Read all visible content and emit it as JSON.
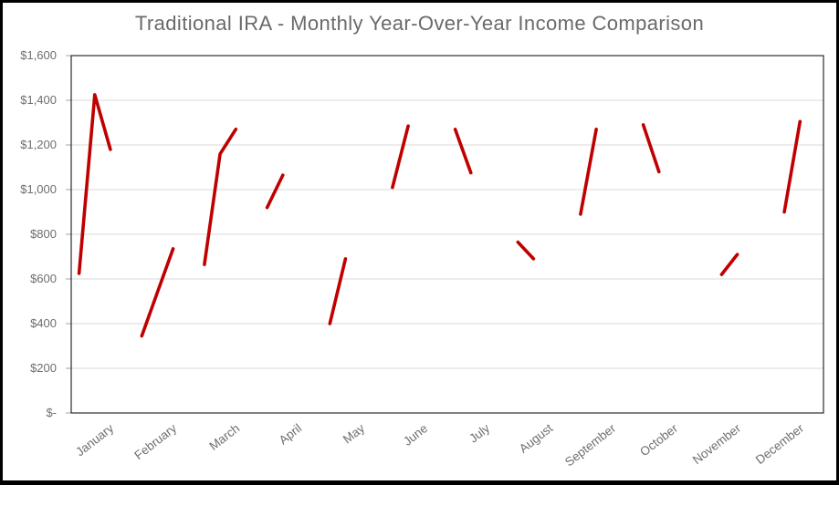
{
  "title": "Traditional IRA - Monthly Year-Over-Year Income Comparison",
  "colors": {
    "series": "#C00000",
    "gridline": "#D9D9D9",
    "axis": "#000000",
    "tick": "#A6A6A6",
    "text": "#6A6A6A",
    "background": "#FFFFFF",
    "frame_border": "#000000"
  },
  "chart_data": {
    "type": "line",
    "title": "Traditional IRA - Monthly Year-Over-Year Income Comparison",
    "xlabel": "",
    "ylabel": "",
    "ylim": [
      0,
      1600
    ],
    "y_tick_step": 200,
    "y_tick_labels": [
      "$-",
      "$200",
      "$400",
      "$600",
      "$800",
      "$1,000",
      "$1,200",
      "$1,400",
      "$1,600"
    ],
    "grid": true,
    "legend": false,
    "series_color": "#C00000",
    "categories": [
      "January",
      "February",
      "March",
      "April",
      "May",
      "June",
      "July",
      "August",
      "September",
      "October",
      "November",
      "December"
    ],
    "months": [
      {
        "label": "January",
        "values": [
          625,
          1425,
          1180
        ],
        "slots": [
          0,
          1,
          2
        ]
      },
      {
        "label": "February",
        "values": [
          345,
          540,
          735
        ],
        "slots": [
          0,
          1,
          2
        ]
      },
      {
        "label": "March",
        "values": [
          665,
          1160,
          1270
        ],
        "slots": [
          0,
          1,
          2
        ]
      },
      {
        "label": "April",
        "values": [
          920,
          1065
        ],
        "slots": [
          0,
          1
        ]
      },
      {
        "label": "May",
        "values": [
          400,
          690
        ],
        "slots": [
          0,
          1
        ]
      },
      {
        "label": "June",
        "values": [
          1010,
          1285
        ],
        "slots": [
          0,
          1
        ]
      },
      {
        "label": "July",
        "values": [
          1270,
          1075
        ],
        "slots": [
          0,
          1
        ]
      },
      {
        "label": "August",
        "values": [
          765,
          690
        ],
        "slots": [
          0,
          1
        ]
      },
      {
        "label": "September",
        "values": [
          890,
          1270
        ],
        "slots": [
          0,
          1
        ]
      },
      {
        "label": "October",
        "values": [
          1290,
          1080
        ],
        "slots": [
          0,
          1
        ]
      },
      {
        "label": "November",
        "values": [
          620,
          710
        ],
        "slots": [
          1,
          2
        ]
      },
      {
        "label": "December",
        "values": [
          900,
          1305
        ],
        "slots": [
          1,
          2
        ]
      }
    ]
  }
}
